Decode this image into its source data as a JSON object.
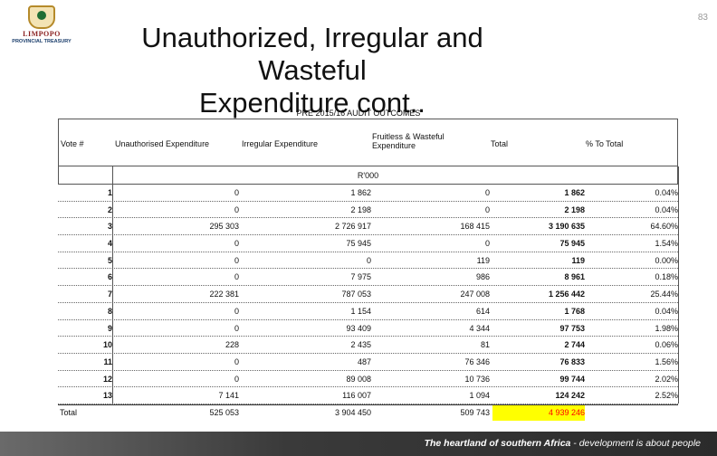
{
  "slide": {
    "page_number": "83",
    "title_line1": "Unauthorized, Irregular and Wasteful",
    "title_line2": "Expenditure cont..",
    "subtitle": "PRE 2015/16 AUDIT OUTCOMES",
    "logo_name": "LIMPOPO",
    "logo_dept": "PROVINCIAL TREASURY",
    "footer_text_bold": "The heartland of southern Africa",
    "footer_text_rest": " - development is about people"
  },
  "table": {
    "headers": {
      "vote": "Vote #",
      "unauthorised": "Unauthorised Expenditure",
      "irregular": "Irregular Expenditure",
      "fruitless": "Fruitless & Wasteful Expenditure",
      "total": "Total",
      "pct": "% To Total"
    },
    "unit": "R'000",
    "rows": [
      {
        "vote": "1",
        "unauthorised": "0",
        "irregular": "1 862",
        "fruitless": "0",
        "total": "1 862",
        "pct": "0.04%"
      },
      {
        "vote": "2",
        "unauthorised": "0",
        "irregular": "2 198",
        "fruitless": "0",
        "total": "2 198",
        "pct": "0.04%"
      },
      {
        "vote": "3",
        "unauthorised": "295 303",
        "irregular": "2 726 917",
        "fruitless": "168 415",
        "total": "3 190 635",
        "pct": "64.60%"
      },
      {
        "vote": "4",
        "unauthorised": "0",
        "irregular": "75 945",
        "fruitless": "0",
        "total": "75 945",
        "pct": "1.54%"
      },
      {
        "vote": "5",
        "unauthorised": "0",
        "irregular": "0",
        "fruitless": "119",
        "total": "119",
        "pct": "0.00%"
      },
      {
        "vote": "6",
        "unauthorised": "0",
        "irregular": "7 975",
        "fruitless": "986",
        "total": "8 961",
        "pct": "0.18%"
      },
      {
        "vote": "7",
        "unauthorised": "222 381",
        "irregular": "787 053",
        "fruitless": "247 008",
        "total": "1 256 442",
        "pct": "25.44%"
      },
      {
        "vote": "8",
        "unauthorised": "0",
        "irregular": "1 154",
        "fruitless": "614",
        "total": "1 768",
        "pct": "0.04%"
      },
      {
        "vote": "9",
        "unauthorised": "0",
        "irregular": "93 409",
        "fruitless": "4 344",
        "total": "97 753",
        "pct": "1.98%"
      },
      {
        "vote": "10",
        "unauthorised": "228",
        "irregular": "2 435",
        "fruitless": "81",
        "total": "2 744",
        "pct": "0.06%"
      },
      {
        "vote": "11",
        "unauthorised": "0",
        "irregular": "487",
        "fruitless": "76 346",
        "total": "76 833",
        "pct": "1.56%"
      },
      {
        "vote": "12",
        "unauthorised": "0",
        "irregular": "89 008",
        "fruitless": "10 736",
        "total": "99 744",
        "pct": "2.02%"
      },
      {
        "vote": "13",
        "unauthorised": "7 141",
        "irregular": "116 007",
        "fruitless": "1 094",
        "total": "124 242",
        "pct": "2.52%"
      }
    ],
    "total_row": {
      "label": "Total",
      "unauthorised": "525 053",
      "irregular": "3 904 450",
      "fruitless": "509 743",
      "total": "4 939 246",
      "total_color": "#ff0000",
      "highlight_color": "#ffff00"
    }
  }
}
